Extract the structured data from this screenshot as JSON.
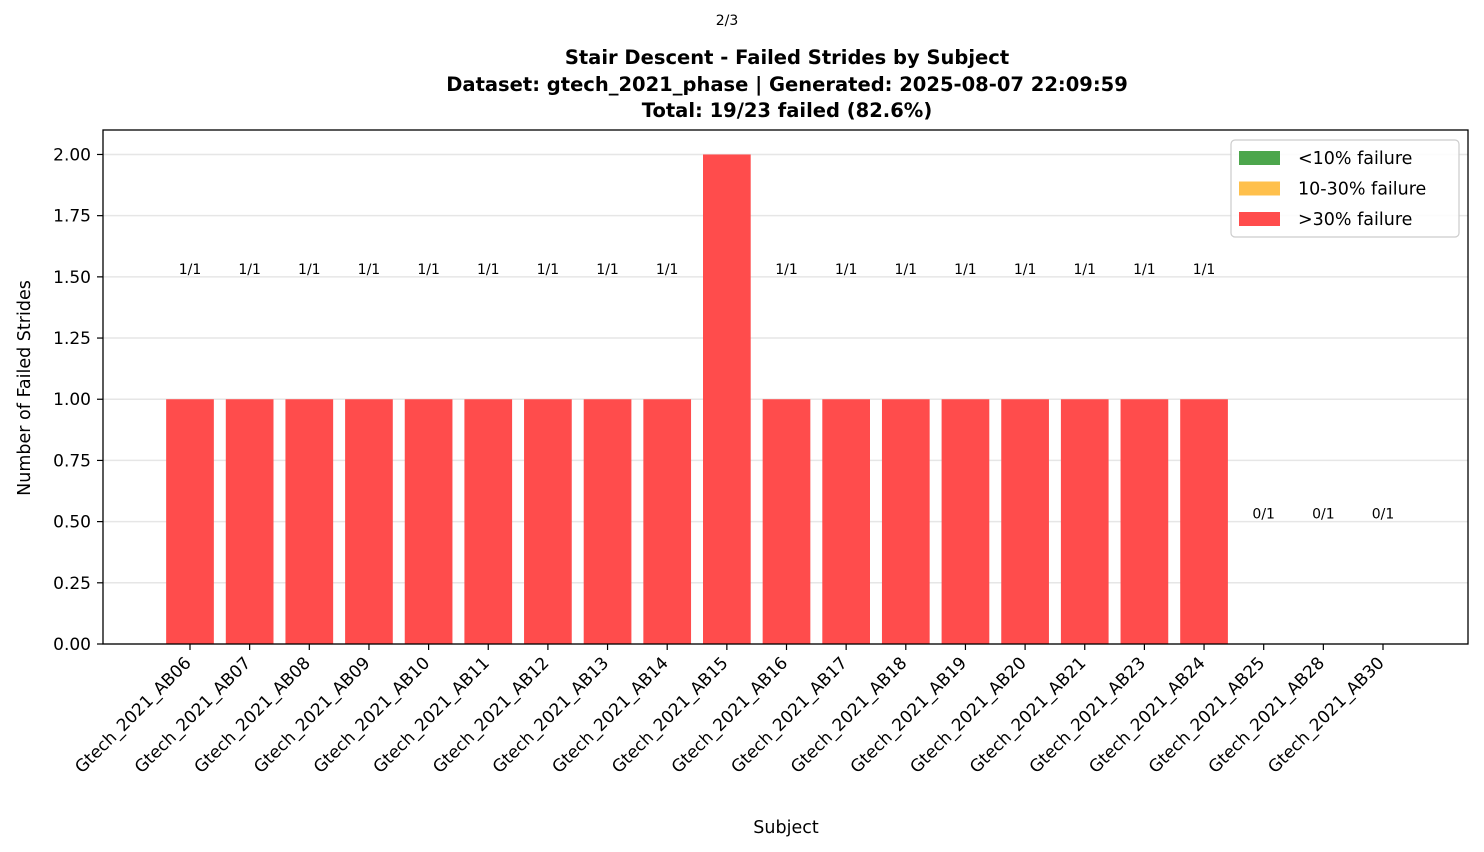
{
  "page_indicator": "2/3",
  "chart_data": {
    "type": "bar",
    "title": "Stair Descent - Failed Strides by Subject",
    "subtitle": "Dataset: gtech_2021_phase | Generated: 2025-08-07 22:09:59",
    "summary": "Total: 19/23 failed (82.6%)",
    "xlabel": "Subject",
    "ylabel": "Number of Failed Strides",
    "ylim": [
      0,
      2.1
    ],
    "yticks": [
      "0.00",
      "0.25",
      "0.50",
      "0.75",
      "1.00",
      "1.25",
      "1.50",
      "1.75",
      "2.00"
    ],
    "grid": "horizontal",
    "legend_position": "top-right",
    "categories": [
      "Gtech_2021_AB06",
      "Gtech_2021_AB07",
      "Gtech_2021_AB08",
      "Gtech_2021_AB09",
      "Gtech_2021_AB10",
      "Gtech_2021_AB11",
      "Gtech_2021_AB12",
      "Gtech_2021_AB13",
      "Gtech_2021_AB14",
      "Gtech_2021_AB15",
      "Gtech_2021_AB16",
      "Gtech_2021_AB17",
      "Gtech_2021_AB18",
      "Gtech_2021_AB19",
      "Gtech_2021_AB20",
      "Gtech_2021_AB21",
      "Gtech_2021_AB23",
      "Gtech_2021_AB24",
      "Gtech_2021_AB25",
      "Gtech_2021_AB28",
      "Gtech_2021_AB30"
    ],
    "values": [
      1,
      1,
      1,
      1,
      1,
      1,
      1,
      1,
      1,
      2,
      1,
      1,
      1,
      1,
      1,
      1,
      1,
      1,
      0,
      0,
      0
    ],
    "data_labels": [
      "1/1",
      "1/1",
      "1/1",
      "1/1",
      "1/1",
      "1/1",
      "1/1",
      "1/1",
      "1/1",
      "",
      "1/1",
      "1/1",
      "1/1",
      "1/1",
      "1/1",
      "1/1",
      "1/1",
      "1/1",
      "0/1",
      "0/1",
      "0/1"
    ],
    "data_label_y": [
      1.5,
      1.5,
      1.5,
      1.5,
      1.5,
      1.5,
      1.5,
      1.5,
      1.5,
      null,
      1.5,
      1.5,
      1.5,
      1.5,
      1.5,
      1.5,
      1.5,
      1.5,
      0.5,
      0.5,
      0.5
    ],
    "bar_color": "#ff4c4c",
    "legend": [
      {
        "label": "<10% failure",
        "color": "#4ca64c"
      },
      {
        "label": "10-30% failure",
        "color": "#ffc04c"
      },
      {
        "label": ">30% failure",
        "color": "#ff4c4c"
      }
    ]
  }
}
